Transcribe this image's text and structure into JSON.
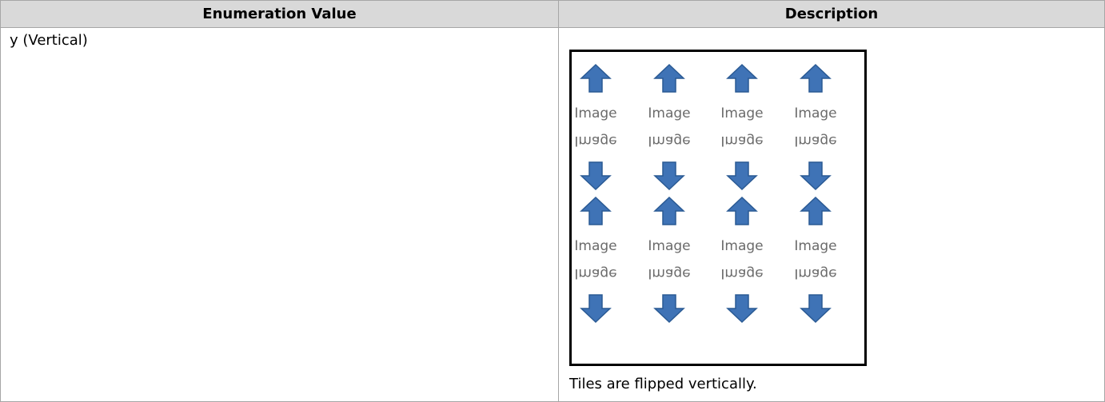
{
  "table": {
    "headers": [
      "Enumeration Value",
      "Description"
    ],
    "rows": [
      [
        "y (Vertical)",
        {
          "image": {
            "tile_label": "Image"
          },
          "caption": "Tiles are flipped vertically."
        }
      ]
    ]
  }
}
